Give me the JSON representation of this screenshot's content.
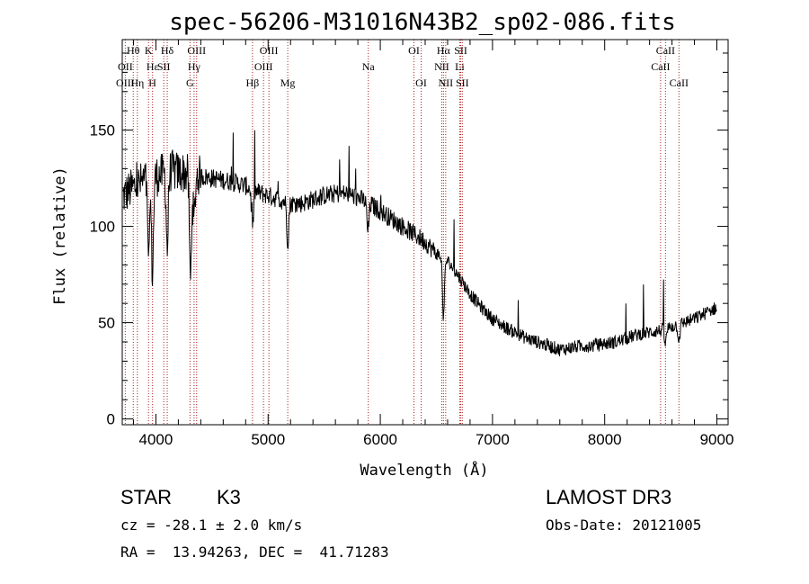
{
  "chart_data": {
    "type": "line",
    "title": "spec-56206-M31016N43B2_sp02-086.fits",
    "xlabel": "Wavelength (Å)",
    "ylabel": "Flux (relative)",
    "xlim": [
      3700,
      9100
    ],
    "ylim": [
      -3,
      197
    ],
    "xticks": [
      4000,
      5000,
      6000,
      7000,
      8000,
      9000
    ],
    "xtick_labels": [
      "4000",
      "5000",
      "6000",
      "7000",
      "8000",
      "9000"
    ],
    "yticks": [
      0,
      50,
      100,
      150
    ],
    "ytick_labels": [
      "0",
      "50",
      "100",
      "150"
    ],
    "series": [
      {
        "name": "flux",
        "x": [
          3700,
          3750,
          3800,
          3850,
          3900,
          3950,
          4000,
          4050,
          4100,
          4150,
          4200,
          4250,
          4300,
          4350,
          4400,
          4500,
          4600,
          4700,
          4800,
          4900,
          5000,
          5100,
          5200,
          5300,
          5400,
          5500,
          5600,
          5700,
          5800,
          5900,
          6000,
          6100,
          6200,
          6300,
          6400,
          6500,
          6600,
          6700,
          6800,
          6900,
          7000,
          7100,
          7200,
          7300,
          7400,
          7500,
          7600,
          7700,
          7800,
          7900,
          8000,
          8100,
          8200,
          8300,
          8400,
          8500,
          8600,
          8700,
          8800,
          8900,
          9000
        ],
        "values": [
          115,
          118,
          120,
          122,
          124,
          125,
          126,
          127,
          128,
          129,
          128,
          128,
          127,
          127,
          126,
          125,
          124,
          123,
          121,
          118,
          116,
          114,
          112,
          112,
          114,
          116,
          117,
          117,
          115,
          112,
          108,
          104,
          100,
          96,
          92,
          86,
          82,
          74,
          65,
          58,
          52,
          48,
          45,
          42,
          40,
          38,
          36,
          37,
          38,
          38,
          39,
          40,
          42,
          44,
          45,
          46,
          48,
          50,
          52,
          55,
          58
        ]
      }
    ],
    "absorption_dips": [
      {
        "x": 3934,
        "depth": 45
      },
      {
        "x": 3969,
        "depth": 50
      },
      {
        "x": 4101,
        "depth": 40
      },
      {
        "x": 4308,
        "depth": 55
      },
      {
        "x": 4340,
        "depth": 25
      },
      {
        "x": 4861,
        "depth": 20
      },
      {
        "x": 5175,
        "depth": 20
      },
      {
        "x": 5890,
        "depth": 15
      },
      {
        "x": 6563,
        "depth": 30
      },
      {
        "x": 8542,
        "depth": 8
      },
      {
        "x": 8662,
        "depth": 8
      }
    ],
    "lines": [
      {
        "label": "Hθ",
        "x": 3798,
        "row": 0
      },
      {
        "label": "OII",
        "x": 3727,
        "row": 1
      },
      {
        "label": "OIII",
        "x": 3727,
        "row": 2
      },
      {
        "label": "K",
        "x": 3934,
        "row": 0
      },
      {
        "label": "Hε",
        "x": 3970,
        "row": 1
      },
      {
        "label": "Hη",
        "x": 3835,
        "row": 2
      },
      {
        "label": "SII",
        "x": 4070,
        "row": 1
      },
      {
        "label": "H",
        "x": 3969,
        "row": 2
      },
      {
        "label": "Hδ",
        "x": 4101,
        "row": 0
      },
      {
        "label": "OIII",
        "x": 4363,
        "row": 0
      },
      {
        "label": "Hγ",
        "x": 4340,
        "row": 1
      },
      {
        "label": "G",
        "x": 4304,
        "row": 2
      },
      {
        "label": "Hβ",
        "x": 4861,
        "row": 2
      },
      {
        "label": "OIII",
        "x": 5007,
        "row": 0
      },
      {
        "label": "OIII",
        "x": 4959,
        "row": 1
      },
      {
        "label": "Mg",
        "x": 5175,
        "row": 2
      },
      {
        "label": "Na",
        "x": 5893,
        "row": 1
      },
      {
        "label": "OI",
        "x": 6300,
        "row": 0
      },
      {
        "label": "OI",
        "x": 6364,
        "row": 2
      },
      {
        "label": "Hα",
        "x": 6563,
        "row": 0
      },
      {
        "label": "NII",
        "x": 6548,
        "row": 1
      },
      {
        "label": "NII",
        "x": 6583,
        "row": 2
      },
      {
        "label": "SII",
        "x": 6717,
        "row": 0
      },
      {
        "label": "Li",
        "x": 6708,
        "row": 1
      },
      {
        "label": "SII",
        "x": 6731,
        "row": 2
      },
      {
        "label": "CaII",
        "x": 8542,
        "row": 0
      },
      {
        "label": "CaII",
        "x": 8498,
        "row": 1
      },
      {
        "label": "CaII",
        "x": 8662,
        "row": 2
      }
    ]
  },
  "info": {
    "class_label": "STAR",
    "subclass": "K3",
    "cz": "cz = -28.1 ± 2.0 km/s",
    "radec": "RA =  13.94263, DEC =  41.71283",
    "survey": "LAMOST DR3",
    "obs_date": "Obs-Date: 20121005"
  },
  "colors": {
    "line_marker": "#b22222",
    "spectrum": "#000000"
  }
}
